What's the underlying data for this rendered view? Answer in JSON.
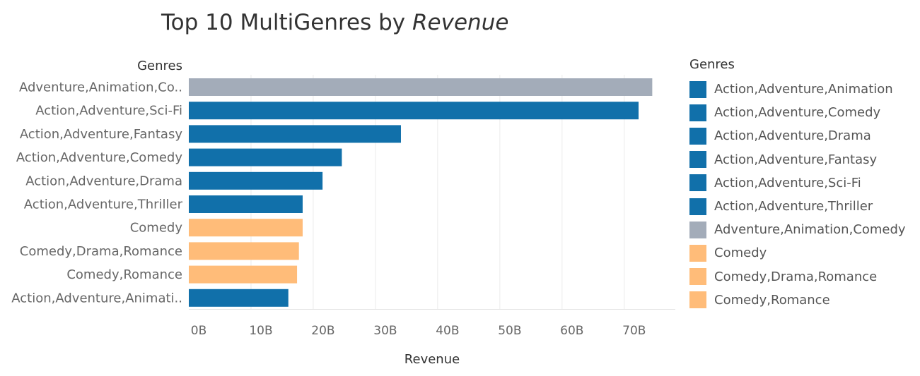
{
  "title": {
    "prefix": "Top 10 MultiGenres by ",
    "emphasis": "Revenue"
  },
  "colors": {
    "blue": "#1170aa",
    "gray": "#a3acb9",
    "orange": "#ffbc79",
    "grid": "#ebebeb",
    "axis_text": "#666666"
  },
  "chart_data": {
    "type": "bar",
    "orientation": "horizontal",
    "title": "Top 10 MultiGenres by Revenue",
    "ylabel": "Genres",
    "xlabel": "Revenue",
    "xlim": [
      0,
      78
    ],
    "x_ticks": [
      0,
      10,
      20,
      30,
      40,
      50,
      60,
      70
    ],
    "x_tick_labels": [
      "0B",
      "10B",
      "20B",
      "30B",
      "40B",
      "50B",
      "60B",
      "70B"
    ],
    "grid": true,
    "unit": "B",
    "categories": [
      "Adventure,Animation,Co..",
      "Action,Adventure,Sci-Fi",
      "Action,Adventure,Fantasy",
      "Action,Adventure,Comedy",
      "Action,Adventure,Drama",
      "Action,Adventure,Thriller",
      "Comedy",
      "Comedy,Drama,Romance",
      "Comedy,Romance",
      "Action,Adventure,Animati.."
    ],
    "values": [
      74.5,
      72.3,
      34.1,
      24.6,
      21.5,
      18.3,
      18.3,
      17.7,
      17.4,
      16.0
    ],
    "colors": [
      "#a3acb9",
      "#1170aa",
      "#1170aa",
      "#1170aa",
      "#1170aa",
      "#1170aa",
      "#ffbc79",
      "#ffbc79",
      "#ffbc79",
      "#1170aa"
    ],
    "legend": {
      "title": "Genres",
      "position": "right",
      "items": [
        {
          "label": "Action,Adventure,Animation",
          "color": "#1170aa"
        },
        {
          "label": "Action,Adventure,Comedy",
          "color": "#1170aa"
        },
        {
          "label": "Action,Adventure,Drama",
          "color": "#1170aa"
        },
        {
          "label": "Action,Adventure,Fantasy",
          "color": "#1170aa"
        },
        {
          "label": "Action,Adventure,Sci-Fi",
          "color": "#1170aa"
        },
        {
          "label": "Action,Adventure,Thriller",
          "color": "#1170aa"
        },
        {
          "label": "Adventure,Animation,Comedy",
          "color": "#a3acb9"
        },
        {
          "label": "Comedy",
          "color": "#ffbc79"
        },
        {
          "label": "Comedy,Drama,Romance",
          "color": "#ffbc79"
        },
        {
          "label": "Comedy,Romance",
          "color": "#ffbc79"
        }
      ]
    }
  }
}
